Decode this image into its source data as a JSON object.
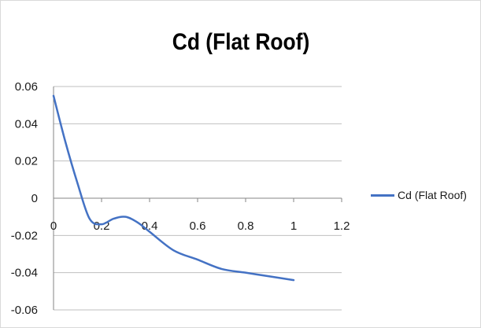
{
  "chart_data": {
    "type": "line",
    "title": "Cd (Flat Roof)",
    "xlabel": "",
    "ylabel": "",
    "xlim": [
      0,
      1.2
    ],
    "ylim": [
      -0.06,
      0.06
    ],
    "x_ticks": [
      "0",
      "0.2",
      "0.4",
      "0.6",
      "0.8",
      "1",
      "1.2"
    ],
    "y_ticks": [
      "0.06",
      "0.04",
      "0.02",
      "0",
      "-0.02",
      "-0.04",
      "-0.06"
    ],
    "grid": "horizontal",
    "legend_position": "right",
    "series": [
      {
        "name": "Cd (Flat Roof)",
        "color": "#4472c4",
        "x": [
          0,
          0.05,
          0.1,
          0.15,
          0.2,
          0.25,
          0.3,
          0.35,
          0.4,
          0.5,
          0.6,
          0.7,
          0.8,
          0.9,
          1.0
        ],
        "y": [
          0.055,
          0.03,
          0.008,
          -0.011,
          -0.014,
          -0.011,
          -0.01,
          -0.013,
          -0.018,
          -0.028,
          -0.033,
          -0.038,
          -0.04,
          -0.042,
          -0.044
        ]
      }
    ]
  }
}
